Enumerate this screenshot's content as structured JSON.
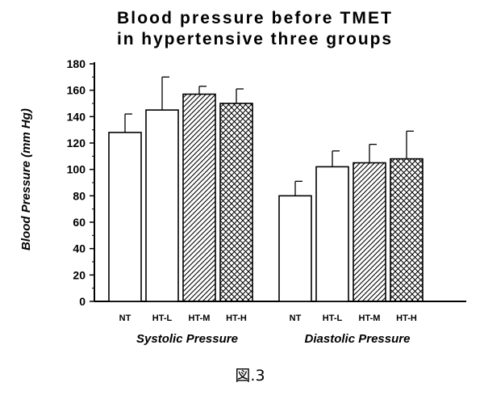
{
  "chart_data": {
    "type": "bar",
    "title_lines": [
      "Blood pressure before TMET",
      "in hypertensive three groups"
    ],
    "ylabel": "Blood Pressure (mm Hg)",
    "xlabel": "",
    "ylim": [
      0,
      180
    ],
    "yticks": [
      "0",
      "20",
      "40",
      "60",
      "80",
      "100",
      "120",
      "140",
      "160",
      "180"
    ],
    "groups": [
      {
        "name": "Systolic Pressure",
        "categories": [
          "NT",
          "HT-L",
          "HT-M",
          "HT-H"
        ],
        "values": [
          128,
          145,
          157,
          150
        ],
        "errors": [
          14,
          25,
          6,
          11
        ]
      },
      {
        "name": "Diastolic Pressure",
        "categories": [
          "NT",
          "HT-L",
          "HT-M",
          "HT-H"
        ],
        "values": [
          80,
          102,
          105,
          108
        ],
        "errors": [
          11,
          12,
          14,
          21
        ]
      }
    ],
    "fill_patterns": [
      "none",
      "none",
      "diagonal-hatch",
      "cross-hatch"
    ],
    "legend": "none",
    "grid": false
  },
  "caption": "図.3"
}
